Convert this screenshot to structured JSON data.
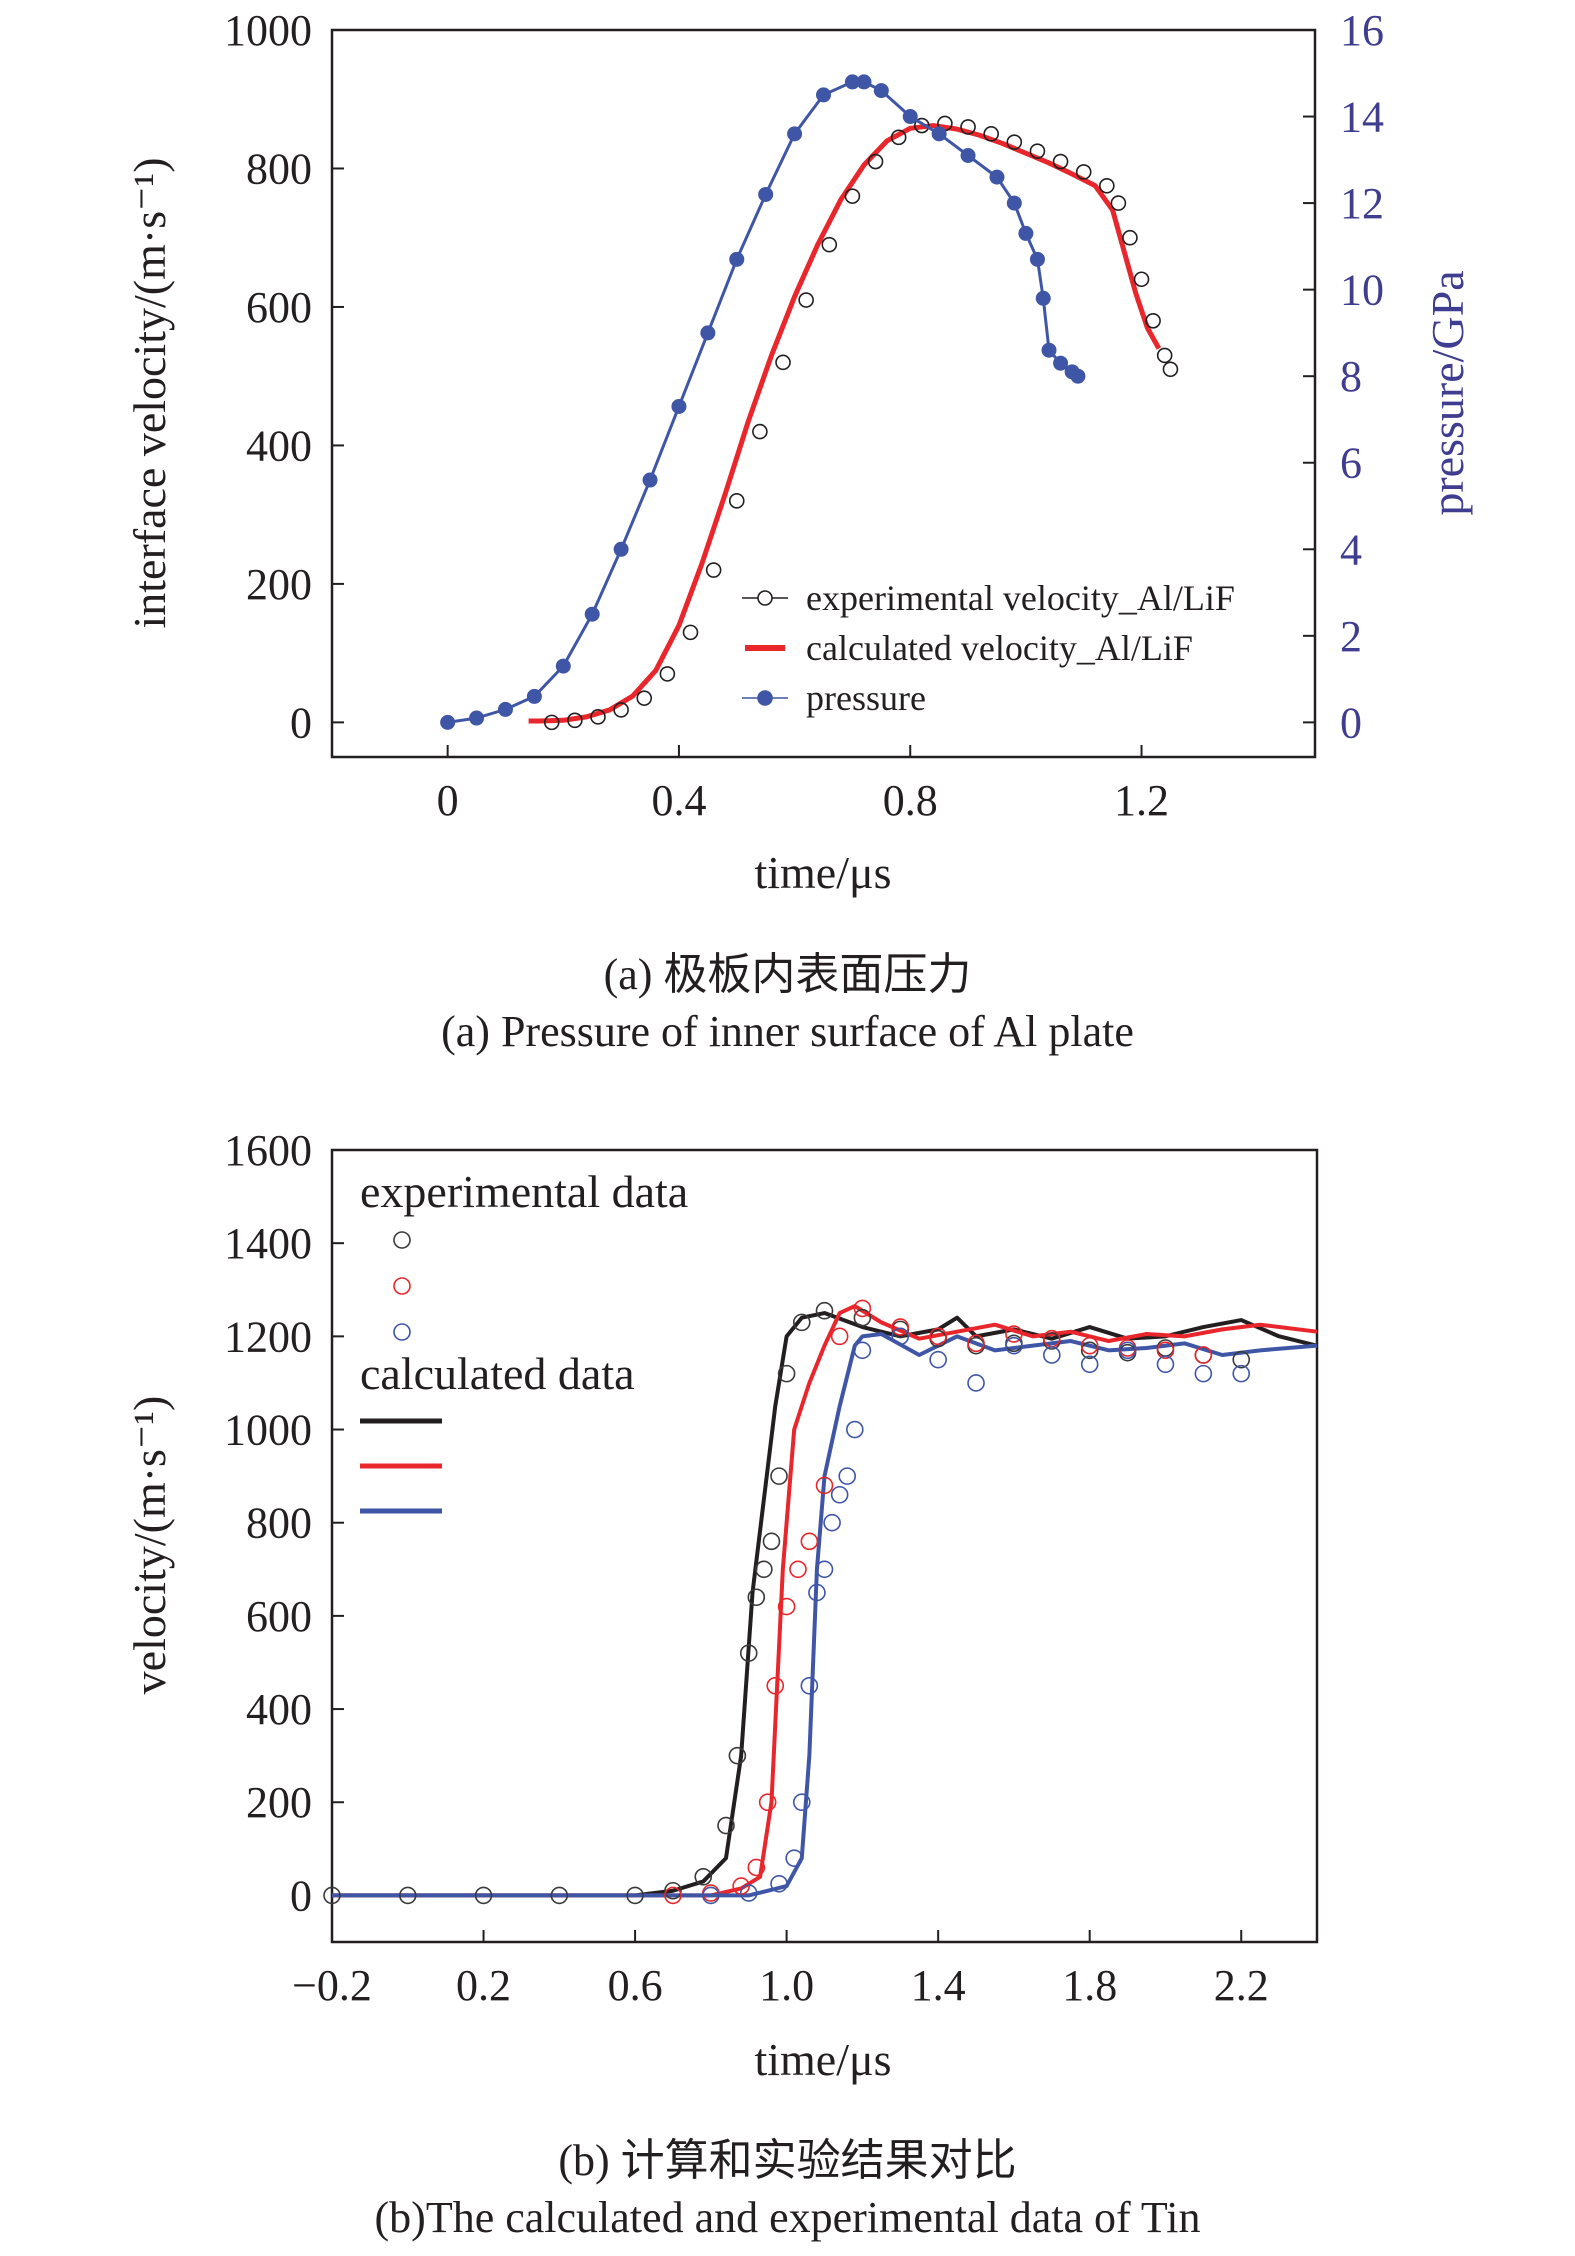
{
  "chart_data": [
    {
      "type": "line",
      "caption_cn": "(a) 极板内表面压力",
      "caption_en": "(a) Pressure of inner surface of Al plate",
      "xlabel": "time/μs",
      "ylabel": "interface velocity/(m·s⁻¹)",
      "y2label": "pressure/GPa",
      "xlim": [
        -0.2,
        1.5
      ],
      "ylim": [
        -50,
        1000
      ],
      "y2lim": [
        -0.8,
        16
      ],
      "xticks": [
        0,
        0.4,
        0.8,
        1.2
      ],
      "xtick_labels": [
        "0",
        "0.4",
        "0.8",
        "1.2"
      ],
      "yticks": [
        0,
        200,
        400,
        600,
        800,
        1000
      ],
      "y2ticks": [
        0,
        2,
        4,
        6,
        8,
        10,
        12,
        14,
        16
      ],
      "legend_position": "lower-right",
      "series": [
        {
          "name": "experimental velocity_Al/LiF",
          "axis": "left",
          "style": "open-circles",
          "color": "#231f20",
          "x": [
            0.18,
            0.22,
            0.26,
            0.3,
            0.34,
            0.38,
            0.42,
            0.46,
            0.5,
            0.54,
            0.58,
            0.62,
            0.66,
            0.7,
            0.74,
            0.78,
            0.82,
            0.86,
            0.9,
            0.94,
            0.98,
            1.02,
            1.06,
            1.1,
            1.14,
            1.16,
            1.18,
            1.2,
            1.22,
            1.24,
            1.25
          ],
          "y": [
            0,
            3,
            8,
            18,
            35,
            70,
            130,
            220,
            320,
            420,
            520,
            610,
            690,
            760,
            810,
            845,
            862,
            865,
            860,
            850,
            838,
            825,
            810,
            795,
            775,
            750,
            700,
            640,
            580,
            530,
            510
          ]
        },
        {
          "name": "calculated velocity_Al/LiF",
          "axis": "left",
          "style": "line",
          "color": "#e8262b",
          "x": [
            0.14,
            0.16,
            0.2,
            0.24,
            0.28,
            0.32,
            0.36,
            0.4,
            0.44,
            0.48,
            0.52,
            0.56,
            0.6,
            0.64,
            0.68,
            0.72,
            0.76,
            0.8,
            0.84,
            0.88,
            0.92,
            0.96,
            1.0,
            1.04,
            1.08,
            1.12,
            1.15,
            1.17,
            1.19,
            1.21,
            1.23
          ],
          "y": [
            2,
            2,
            3,
            8,
            18,
            38,
            75,
            140,
            230,
            330,
            435,
            530,
            615,
            690,
            755,
            805,
            840,
            858,
            862,
            857,
            848,
            836,
            822,
            808,
            792,
            775,
            740,
            680,
            620,
            570,
            540
          ]
        },
        {
          "name": "pressure",
          "axis": "right",
          "style": "filled-circles-line",
          "color": "#3f56a6",
          "x": [
            0,
            0.05,
            0.1,
            0.15,
            0.2,
            0.25,
            0.3,
            0.35,
            0.4,
            0.45,
            0.5,
            0.55,
            0.6,
            0.65,
            0.7,
            0.72,
            0.75,
            0.8,
            0.85,
            0.9,
            0.95,
            0.98,
            1.0,
            1.02,
            1.03,
            1.04,
            1.06,
            1.08,
            1.09
          ],
          "y": [
            0,
            0.1,
            0.3,
            0.6,
            1.3,
            2.5,
            4.0,
            5.6,
            7.3,
            9.0,
            10.7,
            12.2,
            13.6,
            14.5,
            14.8,
            14.8,
            14.6,
            14.0,
            13.6,
            13.1,
            12.6,
            12.0,
            11.3,
            10.7,
            9.8,
            8.6,
            8.3,
            8.1,
            8.0
          ]
        }
      ]
    },
    {
      "type": "line",
      "caption_cn": "(b) 计算和实验结果对比",
      "caption_en": "(b)The calculated and experimental data of Tin",
      "xlabel": "time/μs",
      "ylabel": "velocity/(m·s⁻¹)",
      "xlim": [
        -0.2,
        2.4
      ],
      "ylim": [
        -100,
        1600
      ],
      "xticks": [
        -0.2,
        0.2,
        0.6,
        1.0,
        1.4,
        1.8,
        2.2
      ],
      "xtick_labels": [
        "−0.2",
        "0.2",
        "0.6",
        "1.0",
        "1.4",
        "1.8",
        "2.2"
      ],
      "yticks": [
        0,
        200,
        400,
        600,
        800,
        1000,
        1200,
        1400,
        1600
      ],
      "legend_title_experimental": "experimental data",
      "legend_title_calculated": "calculated data",
      "legend_position": "top-left",
      "series": [
        {
          "kind": "experimental",
          "style": "open-circles",
          "color": "#3a3a3a",
          "x": [
            -0.2,
            0.0,
            0.2,
            0.4,
            0.6,
            0.7,
            0.78,
            0.84,
            0.87,
            0.9,
            0.92,
            0.94,
            0.96,
            0.98,
            1.0,
            1.04,
            1.1,
            1.2,
            1.3,
            1.4,
            1.5,
            1.6,
            1.7,
            1.8,
            1.9,
            2.0,
            2.1,
            2.2
          ],
          "y": [
            0,
            0,
            0,
            0,
            0,
            10,
            40,
            150,
            300,
            520,
            640,
            700,
            760,
            900,
            1120,
            1230,
            1255,
            1240,
            1215,
            1195,
            1180,
            1185,
            1190,
            1170,
            1165,
            1175,
            1160,
            1150
          ]
        },
        {
          "kind": "experimental",
          "style": "open-circles",
          "color": "#e8262b",
          "x": [
            0.7,
            0.8,
            0.88,
            0.92,
            0.95,
            0.97,
            1.0,
            1.03,
            1.06,
            1.1,
            1.14,
            1.2,
            1.3,
            1.4,
            1.5,
            1.6,
            1.7,
            1.8,
            1.9,
            2.0,
            2.1
          ],
          "y": [
            0,
            5,
            20,
            60,
            200,
            450,
            620,
            700,
            760,
            880,
            1200,
            1260,
            1220,
            1200,
            1185,
            1205,
            1195,
            1180,
            1175,
            1170,
            1160
          ]
        },
        {
          "kind": "experimental",
          "style": "open-circles",
          "color": "#3f56a6",
          "x": [
            0.8,
            0.9,
            0.98,
            1.02,
            1.04,
            1.06,
            1.08,
            1.1,
            1.12,
            1.14,
            1.16,
            1.18,
            1.2,
            1.3,
            1.4,
            1.5,
            1.6,
            1.7,
            1.8,
            1.9,
            2.0,
            2.1,
            2.2
          ],
          "y": [
            0,
            5,
            25,
            80,
            200,
            450,
            650,
            700,
            800,
            860,
            900,
            1000,
            1170,
            1200,
            1150,
            1100,
            1180,
            1160,
            1140,
            1170,
            1140,
            1120,
            1120
          ]
        },
        {
          "kind": "calculated",
          "style": "line",
          "color": "#231f20",
          "x": [
            -0.2,
            0.6,
            0.7,
            0.78,
            0.84,
            0.88,
            0.91,
            0.94,
            0.97,
            1.0,
            1.04,
            1.1,
            1.2,
            1.3,
            1.4,
            1.45,
            1.5,
            1.6,
            1.7,
            1.8,
            1.9,
            2.0,
            2.1,
            2.2,
            2.3,
            2.4
          ],
          "y": [
            0,
            0,
            10,
            30,
            80,
            300,
            650,
            850,
            1050,
            1200,
            1240,
            1250,
            1220,
            1200,
            1215,
            1240,
            1200,
            1215,
            1195,
            1220,
            1195,
            1200,
            1220,
            1235,
            1200,
            1180
          ]
        },
        {
          "kind": "calculated",
          "style": "line",
          "color": "#e8262b",
          "x": [
            -0.2,
            0.8,
            0.88,
            0.93,
            0.96,
            0.99,
            1.02,
            1.06,
            1.1,
            1.14,
            1.18,
            1.25,
            1.35,
            1.45,
            1.55,
            1.65,
            1.75,
            1.85,
            1.95,
            2.05,
            2.15,
            2.25,
            2.4
          ],
          "y": [
            0,
            0,
            15,
            40,
            200,
            700,
            1000,
            1100,
            1180,
            1250,
            1265,
            1230,
            1195,
            1210,
            1225,
            1200,
            1210,
            1190,
            1205,
            1200,
            1215,
            1225,
            1210
          ]
        },
        {
          "kind": "calculated",
          "style": "line",
          "color": "#3f56a6",
          "x": [
            -0.2,
            0.9,
            1.0,
            1.04,
            1.06,
            1.08,
            1.1,
            1.14,
            1.18,
            1.2,
            1.25,
            1.35,
            1.45,
            1.55,
            1.65,
            1.75,
            1.85,
            1.95,
            2.05,
            2.15,
            2.25,
            2.4
          ],
          "y": [
            0,
            0,
            20,
            80,
            300,
            700,
            900,
            1050,
            1180,
            1200,
            1205,
            1160,
            1200,
            1170,
            1180,
            1190,
            1170,
            1175,
            1185,
            1160,
            1170,
            1180
          ]
        }
      ]
    }
  ]
}
